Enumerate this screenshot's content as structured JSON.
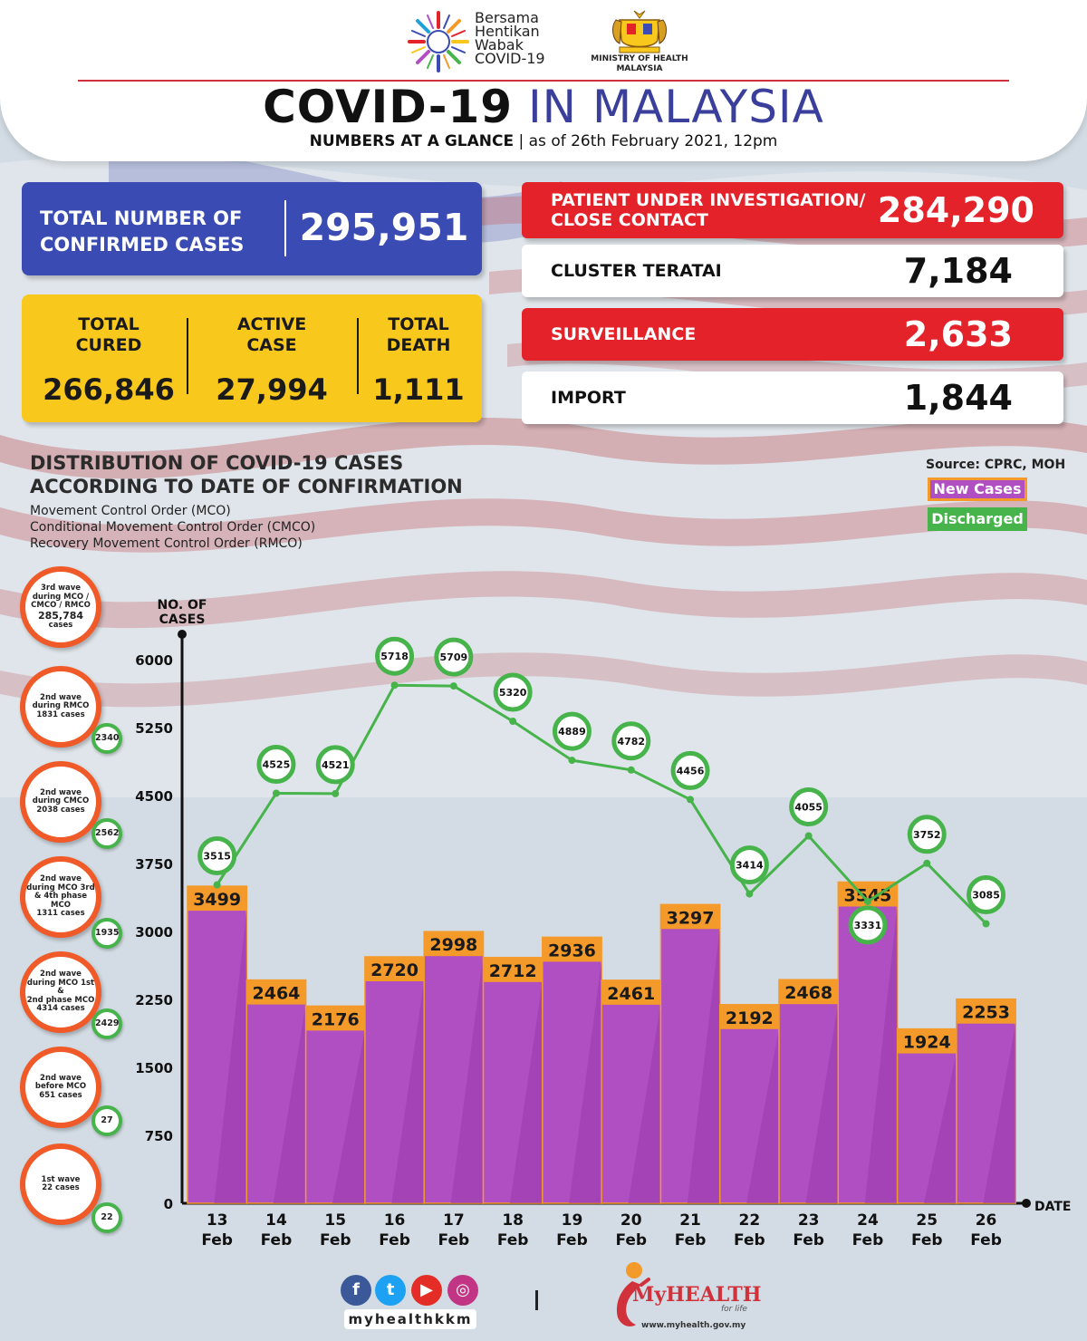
{
  "header": {
    "campaign_lines": [
      "Bersama",
      "Hentikan",
      "Wabak",
      "COVID-19"
    ],
    "ministry_lines": [
      "MINISTRY OF HEALTH",
      "MALAYSIA"
    ],
    "title_part1": "COVID-19",
    "title_part2": "IN MALAYSIA",
    "subtitle_part1": "NUMBERS AT A GLANCE",
    "subtitle_part2": "as of 26th February 2021, 12pm"
  },
  "totals": {
    "confirmed_label": [
      "TOTAL NUMBER OF",
      "CONFIRMED CASES"
    ],
    "confirmed_value": "295,951",
    "cured_label": [
      "TOTAL",
      "CURED"
    ],
    "cured_value": "266,846",
    "active_label": [
      "ACTIVE",
      "CASE"
    ],
    "active_value": "27,994",
    "death_label": [
      "TOTAL",
      "DEATH"
    ],
    "death_value": "1,111"
  },
  "right_stats": [
    {
      "label": [
        "PATIENT UNDER INVESTIGATION/",
        "CLOSE CONTACT"
      ],
      "value": "284,290",
      "style": "red"
    },
    {
      "label": [
        "CLUSTER TERATAI"
      ],
      "value": "7,184",
      "style": "white"
    },
    {
      "label": [
        "SURVEILLANCE"
      ],
      "value": "2,633",
      "style": "red"
    },
    {
      "label": [
        "IMPORT"
      ],
      "value": "1,844",
      "style": "white"
    }
  ],
  "chart_section": {
    "title_lines": [
      "DISTRIBUTION OF COVID-19 CASES",
      "ACCORDING TO DATE OF CONFIRMATION"
    ],
    "sub_lines": [
      "Movement Control Order (MCO)",
      "Conditional Movement Control Order (CMCO)",
      "Recovery Movement Control Order (RMCO)"
    ],
    "source": "Source: CPRC, MOH",
    "legend_new": "New Cases",
    "legend_discharged": "Discharged"
  },
  "waves": [
    {
      "lines": [
        "3rd wave",
        "during MCO /",
        "CMCO / RMCO",
        "285,784",
        "cases"
      ],
      "badge": ""
    },
    {
      "lines": [
        "2nd wave",
        "during RMCO",
        "1831 cases"
      ],
      "badge": "2340"
    },
    {
      "lines": [
        "2nd wave",
        "during CMCO",
        "2038 cases"
      ],
      "badge": "2562"
    },
    {
      "lines": [
        "2nd wave",
        "during MCO 3rd",
        "& 4th phase MCO",
        "1311 cases"
      ],
      "badge": "1935"
    },
    {
      "lines": [
        "2nd wave",
        "during MCO 1st &",
        "2nd phase MCO",
        "4314 cases"
      ],
      "badge": "2429"
    },
    {
      "lines": [
        "2nd wave",
        "before MCO",
        "651 cases"
      ],
      "badge": "27"
    },
    {
      "lines": [
        "1st wave",
        "22 cases"
      ],
      "badge": "22"
    }
  ],
  "chart_data": {
    "type": "bar",
    "categories": [
      "13 Feb",
      "14 Feb",
      "15 Feb",
      "16 Feb",
      "17 Feb",
      "18 Feb",
      "19 Feb",
      "20 Feb",
      "21 Feb",
      "22 Feb",
      "23 Feb",
      "24 Feb",
      "25 Feb",
      "26 Feb"
    ],
    "series": [
      {
        "name": "New Cases",
        "type": "bar",
        "values": [
          3499,
          2464,
          2176,
          2720,
          2998,
          2712,
          2936,
          2461,
          3297,
          2192,
          2468,
          3545,
          1924,
          2253
        ]
      },
      {
        "name": "Discharged",
        "type": "line",
        "values": [
          3515,
          4525,
          4521,
          5718,
          5709,
          5320,
          4889,
          4782,
          4456,
          3414,
          4055,
          3331,
          3752,
          3085
        ]
      }
    ],
    "ylabel": "NO. OF CASES",
    "xlabel": "DATE",
    "yticks": [
      0,
      750,
      1500,
      2250,
      3000,
      3750,
      4500,
      5250,
      6000
    ],
    "ylim": [
      0,
      6000
    ],
    "colors": {
      "bar": "#b04fc2",
      "bar_dark": "#9a3aad",
      "bar_label_bg": "#f39a2a",
      "line": "#46b34b"
    }
  },
  "footer": {
    "handle": "myhealthkkm",
    "brand": "MyHEALTH",
    "tagline": "for life",
    "url": "www.myhealth.gov.my",
    "social_icons": [
      "facebook-icon",
      "twitter-icon",
      "youtube-icon",
      "instagram-icon"
    ]
  }
}
